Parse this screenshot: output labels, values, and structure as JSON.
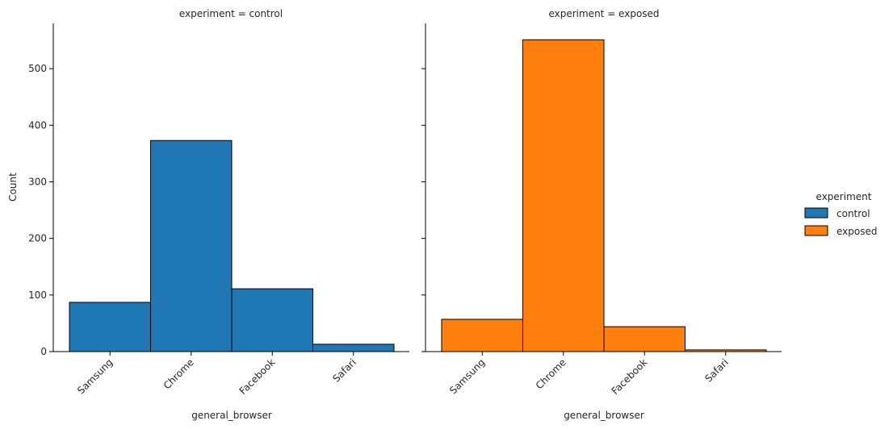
{
  "chart_data": {
    "type": "bar",
    "x_label": "general_browser",
    "y_label": "Count",
    "categories": [
      "Samsung",
      "Chrome",
      "Facebook",
      "Safari"
    ],
    "ylim": [
      0,
      580
    ],
    "y_ticks": [
      "0",
      "100",
      "200",
      "300",
      "400",
      "500"
    ],
    "y_tick_values": [
      0,
      100,
      200,
      300,
      400,
      500
    ],
    "grid": false,
    "legend": {
      "title": "experiment",
      "position": "right",
      "entries": [
        {
          "label": "control",
          "color": "#1f77b4"
        },
        {
          "label": "exposed",
          "color": "#ff7f0e"
        }
      ]
    },
    "panels": [
      {
        "title": "experiment = control",
        "name": "control",
        "color": "#1f77b4",
        "values": [
          87,
          373,
          111,
          13
        ]
      },
      {
        "title": "experiment = exposed",
        "name": "exposed",
        "color": "#ff7f0e",
        "values": [
          57,
          551,
          44,
          3
        ]
      }
    ]
  }
}
